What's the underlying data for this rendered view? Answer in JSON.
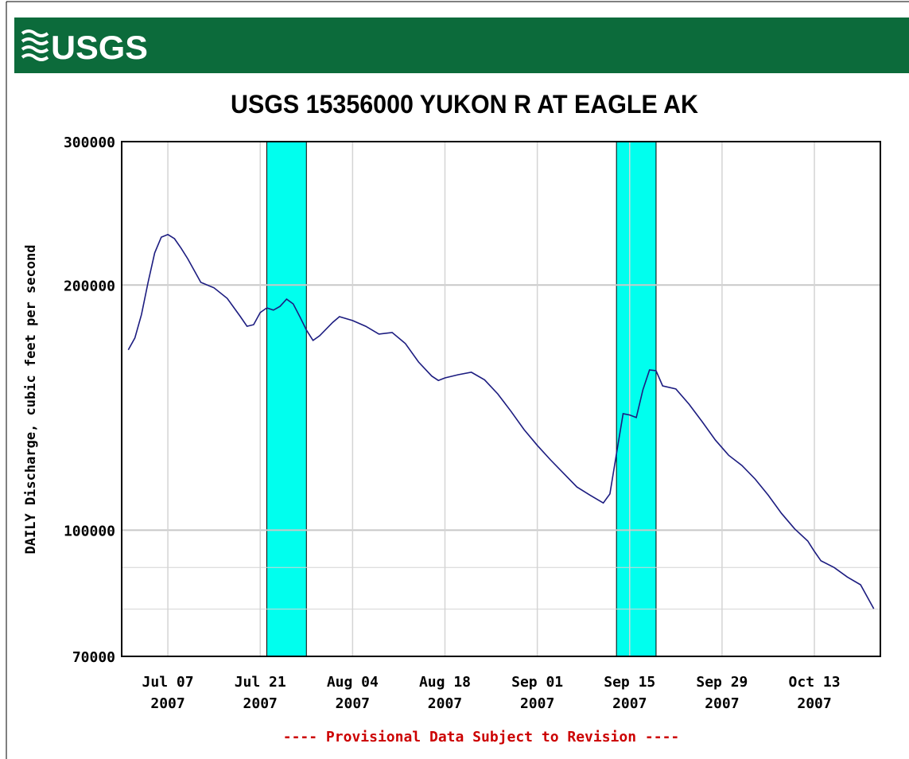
{
  "header": {
    "logo": "USGS"
  },
  "chart_data": {
    "type": "line",
    "title": "USGS 15356000 YUKON R AT EAGLE AK",
    "y_label": "DAILY Discharge, cubic feet per second",
    "note": "---- Provisional Data Subject to Revision ----",
    "log_y": true,
    "grid": true,
    "ylim": [
      70000,
      300000
    ],
    "yticks": [
      70000,
      100000,
      200000,
      300000
    ],
    "y_minor_grid": [
      80000,
      90000
    ],
    "xlim": [
      "2007-06-30",
      "2007-10-23"
    ],
    "xticks": [
      {
        "value": "2007-07-07",
        "label": [
          "Jul 07",
          "2007"
        ]
      },
      {
        "value": "2007-07-21",
        "label": [
          "Jul 21",
          "2007"
        ]
      },
      {
        "value": "2007-08-04",
        "label": [
          "Aug 04",
          "2007"
        ]
      },
      {
        "value": "2007-08-18",
        "label": [
          "Aug 18",
          "2007"
        ]
      },
      {
        "value": "2007-09-01",
        "label": [
          "Sep 01",
          "2007"
        ]
      },
      {
        "value": "2007-09-15",
        "label": [
          "Sep 15",
          "2007"
        ]
      },
      {
        "value": "2007-09-29",
        "label": [
          "Sep 29",
          "2007"
        ]
      },
      {
        "value": "2007-10-13",
        "label": [
          "Oct 13",
          "2007"
        ]
      }
    ],
    "shaded_periods": [
      {
        "start": "2007-07-22",
        "end": "2007-07-28",
        "color": "#00ffee"
      },
      {
        "start": "2007-09-13",
        "end": "2007-09-19",
        "color": "#00ffee"
      }
    ],
    "series": [
      {
        "color": "#1c1c80",
        "x": [
          "2007-07-01",
          "2007-07-02",
          "2007-07-03",
          "2007-07-04",
          "2007-07-05",
          "2007-07-06",
          "2007-07-07",
          "2007-07-08",
          "2007-07-09",
          "2007-07-10",
          "2007-07-12",
          "2007-07-14",
          "2007-07-16",
          "2007-07-18",
          "2007-07-19",
          "2007-07-20",
          "2007-07-21",
          "2007-07-22",
          "2007-07-23",
          "2007-07-24",
          "2007-07-25",
          "2007-07-26",
          "2007-07-27",
          "2007-07-28",
          "2007-07-29",
          "2007-07-30",
          "2007-08-01",
          "2007-08-02",
          "2007-08-04",
          "2007-08-06",
          "2007-08-08",
          "2007-08-10",
          "2007-08-12",
          "2007-08-14",
          "2007-08-16",
          "2007-08-17",
          "2007-08-18",
          "2007-08-20",
          "2007-08-22",
          "2007-08-24",
          "2007-08-26",
          "2007-08-28",
          "2007-08-30",
          "2007-09-01",
          "2007-09-03",
          "2007-09-05",
          "2007-09-07",
          "2007-09-09",
          "2007-09-11",
          "2007-09-12",
          "2007-09-13",
          "2007-09-14",
          "2007-09-15",
          "2007-09-16",
          "2007-09-17",
          "2007-09-18",
          "2007-09-19",
          "2007-09-20",
          "2007-09-22",
          "2007-09-24",
          "2007-09-26",
          "2007-09-28",
          "2007-09-30",
          "2007-10-02",
          "2007-10-04",
          "2007-10-06",
          "2007-10-08",
          "2007-10-10",
          "2007-10-12",
          "2007-10-13",
          "2007-10-14",
          "2007-10-16",
          "2007-10-18",
          "2007-10-20",
          "2007-10-22"
        ],
        "values": [
          166500,
          172200,
          184000,
          201500,
          219000,
          229000,
          230700,
          228000,
          222000,
          215500,
          201500,
          198400,
          192600,
          182900,
          178000,
          178800,
          185000,
          187500,
          186300,
          188300,
          192200,
          189600,
          182900,
          176100,
          171000,
          173300,
          180000,
          182900,
          180900,
          178000,
          174100,
          174900,
          169500,
          160900,
          154600,
          152700,
          153800,
          155200,
          156300,
          153000,
          147000,
          140000,
          132900,
          127100,
          122000,
          117400,
          113000,
          110400,
          108000,
          110800,
          124200,
          139000,
          138500,
          137500,
          148700,
          157300,
          157000,
          150400,
          149100,
          142800,
          135900,
          129000,
          123600,
          120100,
          115600,
          110400,
          104900,
          100400,
          97000,
          94200,
          91700,
          90000,
          87600,
          85700,
          80100
        ]
      }
    ]
  }
}
